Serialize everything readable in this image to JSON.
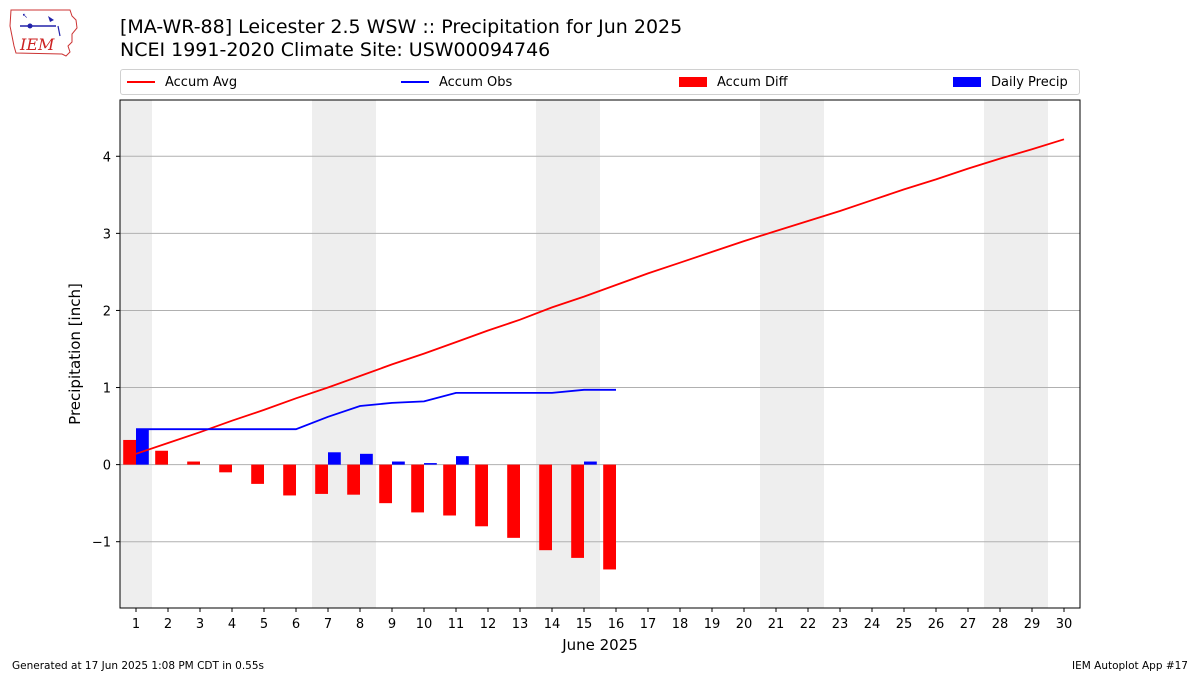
{
  "header": {
    "title_line1": "[MA-WR-88] Leicester 2.5 WSW :: Precipitation for Jun 2025",
    "title_line2": "NCEI 1991-2020 Climate Site: USW00094746"
  },
  "logo": {
    "text": "IEM",
    "icon": "iowa-state-outline-weather-logo"
  },
  "footer": {
    "left": "Generated at 17 Jun 2025 1:08 PM CDT in 0.55s",
    "right": "IEM Autoplot App #17"
  },
  "colors": {
    "avg": "#ff0000",
    "obs": "#0000ff",
    "diff": "#ff0000",
    "daily": "#0000ff",
    "weekend": "#eeeeee",
    "grid": "#b0b0b0"
  },
  "chart_data": {
    "type": "bar",
    "xlabel": "June 2025",
    "ylabel": "Precipitation [inch]",
    "xlim": [
      0.5,
      30.5
    ],
    "ylim": [
      -1.86,
      4.73
    ],
    "yticks": [
      -1,
      0,
      1,
      2,
      3,
      4
    ],
    "ytick_labels": [
      "−1",
      "0",
      "1",
      "2",
      "3",
      "4"
    ],
    "days": [
      1,
      2,
      3,
      4,
      5,
      6,
      7,
      8,
      9,
      10,
      11,
      12,
      13,
      14,
      15,
      16,
      17,
      18,
      19,
      20,
      21,
      22,
      23,
      24,
      25,
      26,
      27,
      28,
      29,
      30
    ],
    "weekend_bands": [
      [
        0.5,
        1.5
      ],
      [
        6.5,
        8.5
      ],
      [
        13.5,
        15.5
      ],
      [
        20.5,
        22.5
      ],
      [
        27.5,
        29.5
      ]
    ],
    "grid": "horizontal",
    "legend": {
      "placement": "top",
      "entries": [
        "Accum Avg",
        "Accum Obs",
        "Accum Diff",
        "Daily Precip"
      ]
    },
    "series": [
      {
        "name": "Accum Avg",
        "kind": "line",
        "days": [
          1,
          2,
          3,
          4,
          5,
          6,
          7,
          8,
          9,
          10,
          11,
          12,
          13,
          14,
          15,
          16,
          17,
          18,
          19,
          20,
          21,
          22,
          23,
          24,
          25,
          26,
          27,
          28,
          29,
          30
        ],
        "values": [
          0.14,
          0.28,
          0.42,
          0.57,
          0.71,
          0.86,
          1.0,
          1.15,
          1.3,
          1.44,
          1.59,
          1.74,
          1.88,
          2.04,
          2.18,
          2.33,
          2.48,
          2.62,
          2.76,
          2.9,
          3.03,
          3.16,
          3.29,
          3.43,
          3.57,
          3.7,
          3.84,
          3.97,
          4.09,
          4.22
        ]
      },
      {
        "name": "Accum Obs",
        "kind": "line",
        "days": [
          1,
          2,
          3,
          4,
          5,
          6,
          7,
          8,
          9,
          10,
          11,
          12,
          13,
          14,
          15,
          16
        ],
        "values": [
          0.46,
          0.46,
          0.46,
          0.46,
          0.46,
          0.46,
          0.62,
          0.76,
          0.8,
          0.82,
          0.93,
          0.93,
          0.93,
          0.93,
          0.97,
          0.97
        ]
      },
      {
        "name": "Accum Diff",
        "kind": "bar",
        "days": [
          1,
          2,
          3,
          4,
          5,
          6,
          7,
          8,
          9,
          10,
          11,
          12,
          13,
          14,
          15,
          16
        ],
        "values": [
          0.32,
          0.18,
          0.04,
          -0.1,
          -0.25,
          -0.4,
          -0.38,
          -0.39,
          -0.5,
          -0.62,
          -0.66,
          -0.8,
          -0.95,
          -1.11,
          -1.21,
          -1.36
        ]
      },
      {
        "name": "Daily Precip",
        "kind": "bar",
        "days": [
          1,
          2,
          3,
          4,
          5,
          6,
          7,
          8,
          9,
          10,
          11,
          12,
          13,
          14,
          15,
          16
        ],
        "values": [
          0.46,
          0,
          0,
          0,
          0,
          0,
          0.16,
          0.14,
          0.04,
          0.02,
          0.11,
          0,
          0,
          0,
          0.04,
          0
        ]
      }
    ]
  }
}
